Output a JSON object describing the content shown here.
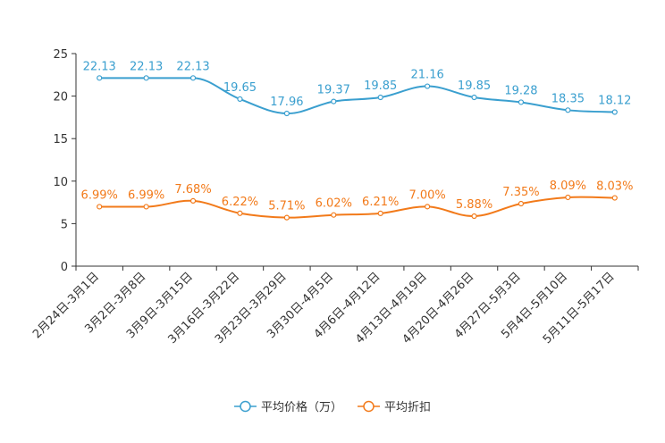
{
  "chart_data": {
    "type": "line",
    "title": "",
    "xlabel": "",
    "ylabel": "",
    "ylim": [
      0,
      25
    ],
    "yticks": [
      0,
      5,
      10,
      15,
      20,
      25
    ],
    "grid": false,
    "legend_position": "bottom-center",
    "categories": [
      "2月24日-3月1日",
      "3月2日-3月8日",
      "3月9日-3月15日",
      "3月16日-3月22日",
      "3月23日-3月29日",
      "3月30日-4月5日",
      "4月6日-4月12日",
      "4月13日-4月19日",
      "4月20日-4月26日",
      "4月27日-5月3日",
      "5月4日-5月10日",
      "5月11日-5月17日"
    ],
    "series": [
      {
        "name": "平均价格（万）",
        "color": "#3a9fcf",
        "values": [
          22.13,
          22.13,
          22.13,
          19.65,
          17.96,
          19.37,
          19.85,
          21.16,
          19.85,
          19.28,
          18.35,
          18.12
        ],
        "labels": [
          "22.13",
          "22.13",
          "22.13",
          "19.65",
          "17.96",
          "19.37",
          "19.85",
          "21.16",
          "19.85",
          "19.28",
          "18.35",
          "18.12"
        ]
      },
      {
        "name": "平均折扣",
        "color": "#f27a1a",
        "values": [
          6.99,
          6.99,
          7.68,
          6.22,
          5.71,
          6.02,
          6.21,
          7.0,
          5.88,
          7.35,
          8.09,
          8.03
        ],
        "labels": [
          "6.99%",
          "6.99%",
          "7.68%",
          "6.22%",
          "5.71%",
          "6.02%",
          "6.21%",
          "7.00%",
          "5.88%",
          "7.35%",
          "8.09%",
          "8.03%"
        ]
      }
    ]
  }
}
